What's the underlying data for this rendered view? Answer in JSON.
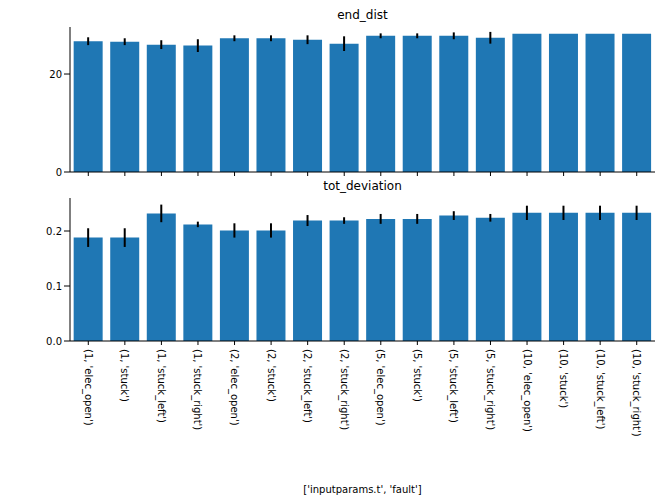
{
  "chart_data": [
    {
      "type": "bar",
      "title": "end_dist",
      "categories": [
        "(1, 'elec_open')",
        "(1, 'stuck')",
        "(1, 'stuck_left')",
        "(1, 'stuck_right')",
        "(2, 'elec_open')",
        "(2, 'stuck')",
        "(2, 'stuck_left')",
        "(2, 'stuck_right')",
        "(5, 'elec_open')",
        "(5, 'stuck')",
        "(5, 'stuck_left')",
        "(5, 'stuck_right')",
        "(10, 'elec_open')",
        "(10, 'stuck')",
        "(10, 'stuck_left')",
        "(10, 'stuck_right')"
      ],
      "values": [
        26.7,
        26.6,
        26.0,
        25.8,
        27.3,
        27.3,
        27.0,
        26.2,
        27.8,
        27.8,
        27.8,
        27.4,
        28.2,
        28.2,
        28.2,
        28.2
      ],
      "errors": [
        0.8,
        0.7,
        0.9,
        1.3,
        0.6,
        0.6,
        0.9,
        1.5,
        0.5,
        0.5,
        0.7,
        1.2,
        0,
        0,
        0,
        0
      ],
      "color": "#1f77b4",
      "ylim": [
        0,
        29.6
      ],
      "yticks": [
        0,
        20
      ],
      "tick_labels": "y"
    },
    {
      "type": "bar",
      "title": "tot_deviation",
      "x_label": "['inputparams.t', 'fault']",
      "categories": [
        "(1, 'elec_open')",
        "(1, 'stuck')",
        "(1, 'stuck_left')",
        "(1, 'stuck_right')",
        "(2, 'elec_open')",
        "(2, 'stuck')",
        "(2, 'stuck_left')",
        "(2, 'stuck_right')",
        "(5, 'elec_open')",
        "(5, 'stuck')",
        "(5, 'stuck_left')",
        "(5, 'stuck_right')",
        "(10, 'elec_open')",
        "(10, 'stuck')",
        "(10, 'stuck_left')",
        "(10, 'stuck_right')"
      ],
      "values": [
        0.188,
        0.188,
        0.232,
        0.212,
        0.201,
        0.201,
        0.219,
        0.219,
        0.222,
        0.222,
        0.228,
        0.224,
        0.233,
        0.233,
        0.233,
        0.233
      ],
      "errors": [
        0.017,
        0.017,
        0.016,
        0.005,
        0.013,
        0.013,
        0.01,
        0.006,
        0.009,
        0.009,
        0.008,
        0.007,
        0.013,
        0.013,
        0.013,
        0.013
      ],
      "color": "#1f77b4",
      "ylim": [
        0,
        0.26
      ],
      "yticks": [
        {
          "value": 0,
          "label": "0.0"
        },
        {
          "value": 0.1,
          "label": "0.1"
        },
        {
          "value": 0.2,
          "label": "0.2"
        }
      ]
    }
  ]
}
